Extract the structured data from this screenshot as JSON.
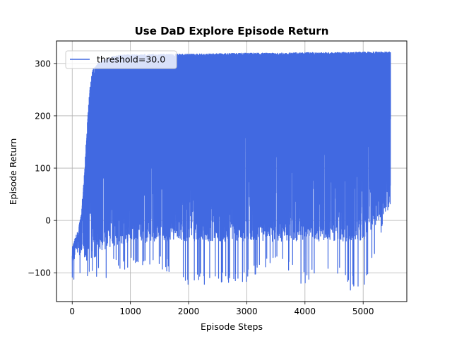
{
  "chart_data": {
    "type": "line",
    "title": "Use DaD Explore Episode Return",
    "xlabel": "Episode Steps",
    "ylabel": "Episode Return",
    "xlim": [
      -270,
      5750
    ],
    "ylim": [
      -155,
      343
    ],
    "xticks": [
      0,
      1000,
      2000,
      3000,
      4000,
      5000
    ],
    "yticks": [
      -100,
      0,
      100,
      200,
      300
    ],
    "xtick_labels": [
      "0",
      "1000",
      "2000",
      "3000",
      "4000",
      "5000"
    ],
    "ytick_labels": [
      "−100",
      "0",
      "100",
      "200",
      "300"
    ],
    "grid": true,
    "legend_position": "top-left",
    "series": [
      {
        "name": "threshold=30.0",
        "color": "#4169e1",
        "n_points": 5470,
        "x_range": [
          0,
          5470
        ],
        "envelope_x": [
          0,
          50,
          100,
          150,
          200,
          250,
          300,
          350,
          400,
          450,
          500,
          600,
          700,
          800,
          1000,
          1500,
          2000,
          2500,
          3000,
          3500,
          4000,
          4500,
          5000,
          5470
        ],
        "envelope_upper": [
          -55,
          -30,
          -20,
          10,
          75,
          170,
          250,
          290,
          298,
          302,
          305,
          310,
          314,
          316,
          317,
          318,
          318,
          319,
          320,
          320,
          321,
          321,
          322,
          322
        ],
        "envelope_lower": [
          -122,
          -118,
          -120,
          -112,
          -118,
          -118,
          -120,
          -120,
          -110,
          -112,
          -115,
          -108,
          -95,
          -100,
          -95,
          -90,
          -122,
          -120,
          -118,
          -78,
          -120,
          -110,
          -133,
          30
        ],
        "typical_low": [
          -90,
          -85,
          -80,
          -70,
          -80,
          -85,
          -85,
          -80,
          -70,
          -65,
          -60,
          -55,
          -50,
          -45,
          -45,
          -40,
          -40,
          -40,
          -40,
          -40,
          -40,
          -40,
          -40,
          30
        ],
        "min_points": [
          {
            "x": 1990,
            "y": -122
          },
          {
            "x": 2270,
            "y": -122
          },
          {
            "x": 3930,
            "y": -120
          },
          {
            "x": 4780,
            "y": -133
          },
          {
            "x": 5020,
            "y": -122
          }
        ]
      }
    ]
  }
}
